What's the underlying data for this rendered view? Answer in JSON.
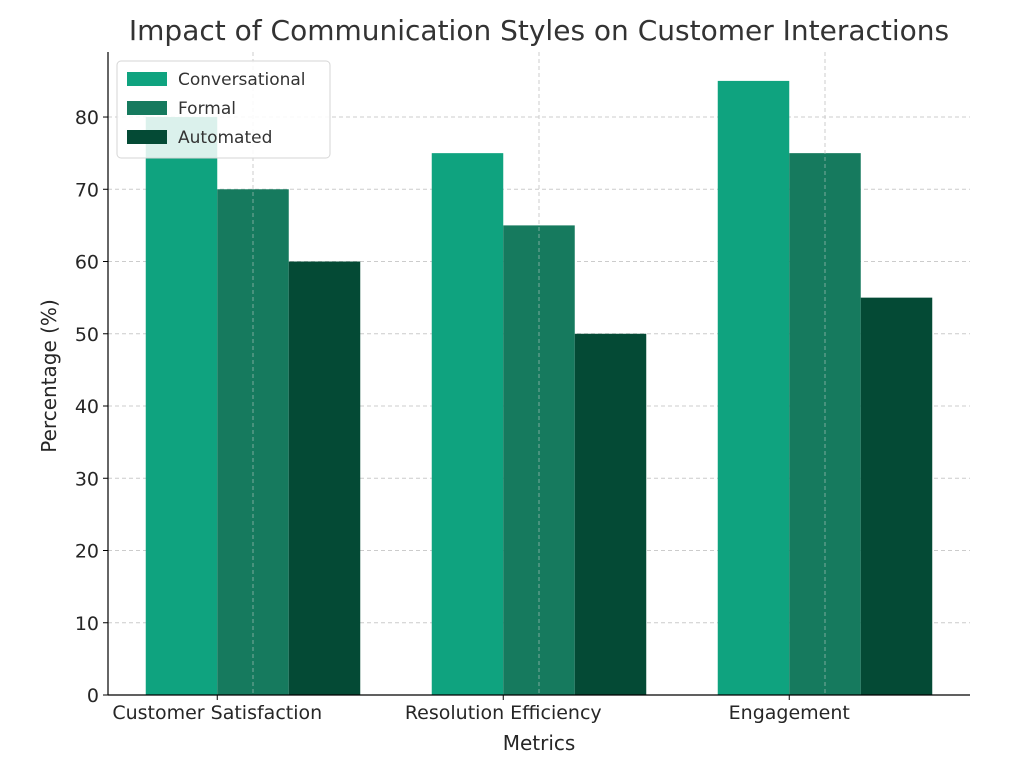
{
  "chart_data": {
    "type": "bar",
    "title": "Impact of Communication Styles on Customer Interactions",
    "xlabel": "Metrics",
    "ylabel": "Percentage (%)",
    "categories": [
      "Customer Satisfaction",
      "Resolution Efficiency",
      "Engagement"
    ],
    "series": [
      {
        "name": "Conversational",
        "values": [
          80,
          75,
          85
        ],
        "color": "#0fa37f"
      },
      {
        "name": "Formal",
        "values": [
          70,
          65,
          75
        ],
        "color": "#167a5e"
      },
      {
        "name": "Automated",
        "values": [
          60,
          50,
          55
        ],
        "color": "#044a35"
      }
    ],
    "ylim": [
      0,
      89
    ],
    "yticks": [
      0,
      10,
      20,
      30,
      40,
      50,
      60,
      70,
      80
    ],
    "grid": true,
    "legend_position": "top-left"
  }
}
